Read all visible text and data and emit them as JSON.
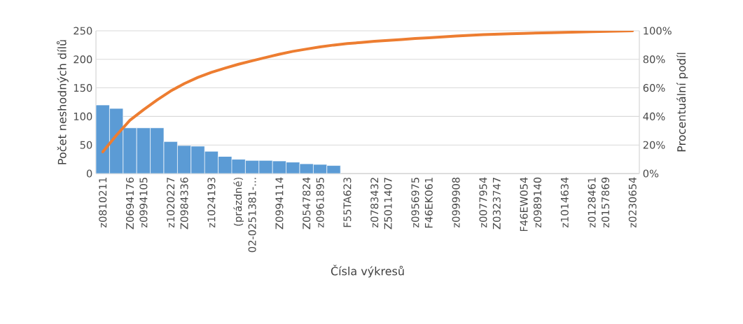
{
  "chart_data": {
    "type": "bar",
    "xlabel": "Čísla výkresů",
    "ylabel": "Počet neshodných dílů",
    "y2label": "Procentuální podíl",
    "categories": [
      "z0810211",
      null,
      "Z0694176",
      "z0994105",
      null,
      "z1020227",
      "Z0984336",
      null,
      "z1024193",
      null,
      "(prázdné)",
      "02-0251381-...",
      null,
      "Z0994114",
      null,
      "Z0547824",
      "z0961895",
      null,
      "F55TA623",
      null,
      "z0783432",
      "Z5011407",
      null,
      "z0956975",
      "F46EK061",
      null,
      "z0999908",
      null,
      "z0077954",
      "Z0323747",
      null,
      "F46EW054",
      "z0989140",
      null,
      "z1014634",
      null,
      "z0128461",
      "z0157869",
      null,
      "z0230654"
    ],
    "series": [
      {
        "color": "#5b9bd5",
        "values": [
          120,
          114,
          80,
          80,
          80,
          56,
          49,
          48,
          39,
          30,
          25,
          23,
          23,
          22,
          20,
          17,
          16,
          14,
          null,
          null,
          null,
          null,
          null,
          null,
          null,
          null,
          null,
          null,
          null,
          null,
          null,
          null,
          null,
          null,
          null,
          null,
          null,
          null,
          null,
          null
        ]
      },
      {
        "type": "line",
        "color": "#ed7d31",
        "axis": "y2",
        "values": [
          15.2,
          26.7,
          37.3,
          44.7,
          51.5,
          57.8,
          63.0,
          67.3,
          70.9,
          73.8,
          76.6,
          79.0,
          81.3,
          83.6,
          85.6,
          87.2,
          88.7,
          90.0,
          91.0,
          91.8,
          92.6,
          93.3,
          93.9,
          94.6,
          95.1,
          95.7,
          96.3,
          96.8,
          97.3,
          97.6,
          97.9,
          98.2,
          98.4,
          98.6,
          98.9,
          99.1,
          99.4,
          99.6,
          99.8,
          100
        ]
      }
    ],
    "ylim": [
      0,
      250
    ],
    "yticks": [
      0,
      50,
      100,
      150,
      200,
      250
    ],
    "y2lim": [
      0,
      100
    ],
    "y2ticks": [
      {
        "value": 0,
        "label": "0%"
      },
      {
        "value": 20,
        "label": "20%"
      },
      {
        "value": 40,
        "label": "40%"
      },
      {
        "value": 60,
        "label": "60%"
      },
      {
        "value": 80,
        "label": "80%"
      },
      {
        "value": 100,
        "label": "100%"
      }
    ],
    "grid": "y"
  }
}
